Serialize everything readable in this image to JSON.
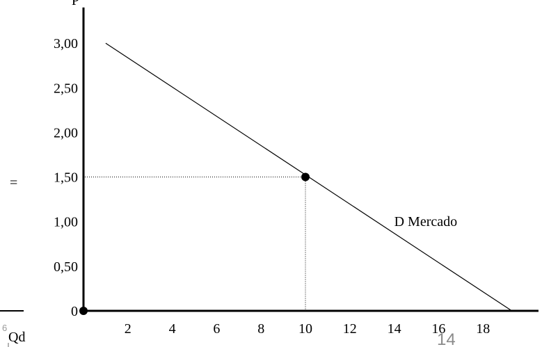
{
  "chart_data": {
    "type": "line",
    "ylabel": "P",
    "xlabel": "Qd",
    "y_ticks": [
      "0",
      "0,50",
      "1,00",
      "1,50",
      "2,00",
      "2,50",
      "3,00"
    ],
    "y_tick_values": [
      0,
      0.5,
      1.0,
      1.5,
      2.0,
      2.5,
      3.0
    ],
    "x_ticks": [
      "2",
      "4",
      "6",
      "8",
      "10",
      "12",
      "14",
      "16",
      "18"
    ],
    "x_tick_values": [
      2,
      4,
      6,
      8,
      10,
      12,
      14,
      16,
      18
    ],
    "xlim": [
      0,
      20.5
    ],
    "ylim": [
      0,
      3.4
    ],
    "series": [
      {
        "name": "D Mercado",
        "x": [
          1,
          19.3
        ],
        "y": [
          3.0,
          0
        ]
      }
    ],
    "highlight_point": {
      "x": 10,
      "y": 1.5
    },
    "origin_point": {
      "x": 0,
      "y": 0
    },
    "grid": false,
    "line_color": "#000000"
  },
  "left_fragment": {
    "eq_label": "=",
    "axis_label": "Qd",
    "tick_fragment": "6"
  },
  "slide_number": "14",
  "colors": {
    "axis": "#000000",
    "page_number": "#8a8a8a",
    "fragment": "#999999"
  }
}
